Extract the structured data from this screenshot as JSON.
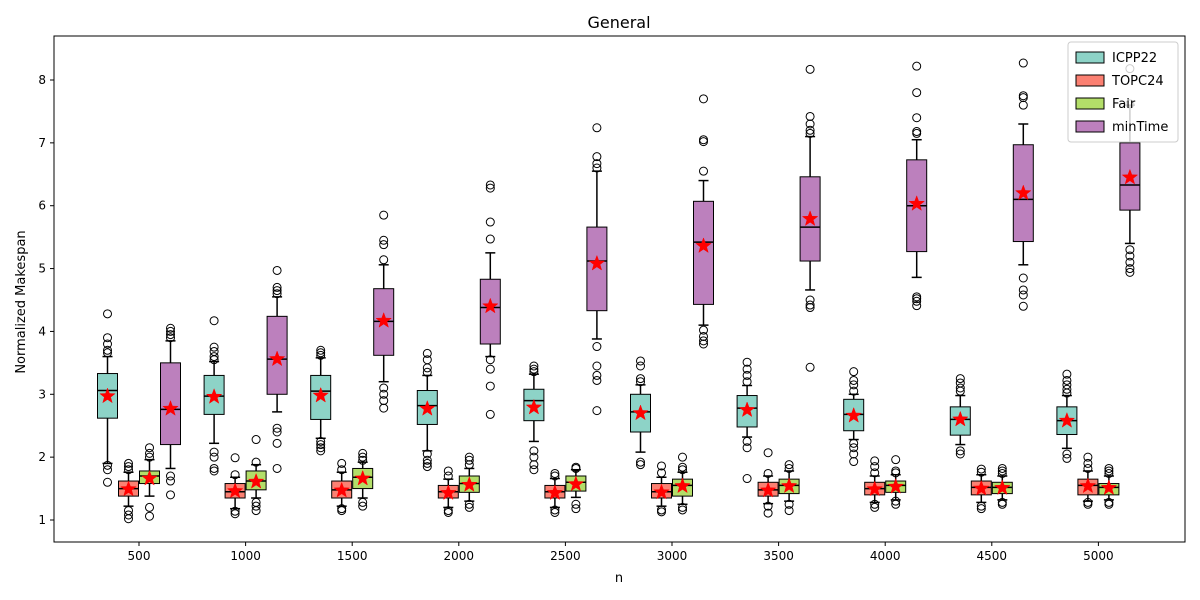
{
  "chart_data": {
    "type": "box",
    "title": "General",
    "xlabel": "n",
    "ylabel": "Normalized Makespan",
    "ylim": [
      0.65,
      8.7
    ],
    "yticks": [
      1,
      2,
      3,
      4,
      5,
      6,
      7,
      8
    ],
    "categories": [
      "500",
      "1000",
      "1500",
      "2000",
      "2500",
      "3000",
      "3500",
      "4000",
      "4500",
      "5000"
    ],
    "legend_position": "top-right",
    "mean_marker": "red-star",
    "series": [
      {
        "name": "ICPP22",
        "color": "#8dd3c7",
        "stats": [
          {
            "q1": 2.62,
            "median": 3.06,
            "q3": 3.33,
            "wlow": 1.9,
            "whigh": 3.6,
            "mean": 2.97,
            "outliers": [
              1.6,
              1.8,
              1.87,
              3.66,
              3.7,
              3.8,
              3.9,
              4.28
            ]
          },
          {
            "q1": 2.68,
            "median": 2.97,
            "q3": 3.3,
            "wlow": 2.22,
            "whigh": 3.52,
            "mean": 2.96,
            "outliers": [
              1.78,
              1.82,
              2.0,
              2.08,
              3.55,
              3.6,
              3.68,
              3.75,
              4.17
            ]
          },
          {
            "q1": 2.6,
            "median": 3.05,
            "q3": 3.3,
            "wlow": 2.3,
            "whigh": 3.58,
            "mean": 2.98,
            "outliers": [
              2.1,
              2.15,
              2.2,
              2.25,
              3.62,
              3.66,
              3.7
            ]
          },
          {
            "q1": 2.52,
            "median": 2.82,
            "q3": 3.06,
            "wlow": 2.1,
            "whigh": 3.3,
            "mean": 2.77,
            "outliers": [
              1.85,
              1.9,
              1.95,
              2.05,
              3.35,
              3.42,
              3.55,
              3.65
            ]
          },
          {
            "q1": 2.58,
            "median": 2.9,
            "q3": 3.08,
            "wlow": 2.25,
            "whigh": 3.32,
            "mean": 2.79,
            "outliers": [
              1.8,
              1.88,
              2.0,
              2.1,
              3.36,
              3.4,
              3.45
            ]
          },
          {
            "q1": 2.4,
            "median": 2.72,
            "q3": 3.0,
            "wlow": 2.08,
            "whigh": 3.15,
            "mean": 2.7,
            "outliers": [
              1.88,
              1.92,
              3.2,
              3.25,
              3.45,
              3.53
            ]
          },
          {
            "q1": 2.48,
            "median": 2.78,
            "q3": 2.98,
            "wlow": 2.32,
            "whigh": 3.14,
            "mean": 2.75,
            "outliers": [
              1.66,
              2.15,
              2.25,
              3.2,
              3.3,
              3.4,
              3.51
            ]
          },
          {
            "q1": 2.42,
            "median": 2.68,
            "q3": 2.92,
            "wlow": 2.28,
            "whigh": 3.0,
            "mean": 2.66,
            "outliers": [
              1.93,
              2.05,
              2.15,
              2.22,
              3.05,
              3.15,
              3.22,
              3.36
            ]
          },
          {
            "q1": 2.35,
            "median": 2.6,
            "q3": 2.8,
            "wlow": 2.2,
            "whigh": 2.98,
            "mean": 2.6,
            "outliers": [
              2.05,
              2.1,
              3.05,
              3.1,
              3.18,
              3.25
            ]
          },
          {
            "q1": 2.36,
            "median": 2.58,
            "q3": 2.8,
            "wlow": 2.14,
            "whigh": 2.98,
            "mean": 2.58,
            "outliers": [
              1.98,
              2.05,
              3.02,
              3.08,
              3.15,
              3.22,
              3.32
            ]
          }
        ]
      },
      {
        "name": "TOPC24",
        "color": "#fb8072",
        "stats": [
          {
            "q1": 1.38,
            "median": 1.5,
            "q3": 1.62,
            "wlow": 1.22,
            "whigh": 1.76,
            "mean": 1.49,
            "outliers": [
              1.02,
              1.08,
              1.15,
              1.8,
              1.85,
              1.9
            ]
          },
          {
            "q1": 1.35,
            "median": 1.45,
            "q3": 1.58,
            "wlow": 1.18,
            "whigh": 1.68,
            "mean": 1.46,
            "outliers": [
              1.1,
              1.14,
              1.72,
              1.99
            ]
          },
          {
            "q1": 1.35,
            "median": 1.48,
            "q3": 1.62,
            "wlow": 1.22,
            "whigh": 1.76,
            "mean": 1.47,
            "outliers": [
              1.15,
              1.18,
              1.8,
              1.9
            ]
          },
          {
            "q1": 1.35,
            "median": 1.45,
            "q3": 1.55,
            "wlow": 1.2,
            "whigh": 1.65,
            "mean": 1.43,
            "outliers": [
              1.12,
              1.15,
              1.7,
              1.78
            ]
          },
          {
            "q1": 1.35,
            "median": 1.45,
            "q3": 1.55,
            "wlow": 1.2,
            "whigh": 1.66,
            "mean": 1.43,
            "outliers": [
              1.12,
              1.16,
              1.7,
              1.74
            ]
          },
          {
            "q1": 1.35,
            "median": 1.45,
            "q3": 1.58,
            "wlow": 1.22,
            "whigh": 1.68,
            "mean": 1.44,
            "outliers": [
              1.13,
              1.16,
              1.75,
              1.86
            ]
          },
          {
            "q1": 1.38,
            "median": 1.48,
            "q3": 1.6,
            "wlow": 1.26,
            "whigh": 1.7,
            "mean": 1.47,
            "outliers": [
              1.11,
              1.22,
              1.74,
              2.07
            ]
          },
          {
            "q1": 1.4,
            "median": 1.5,
            "q3": 1.6,
            "wlow": 1.28,
            "whigh": 1.7,
            "mean": 1.49,
            "outliers": [
              1.2,
              1.25,
              1.75,
              1.85,
              1.94
            ]
          },
          {
            "q1": 1.4,
            "median": 1.52,
            "q3": 1.62,
            "wlow": 1.28,
            "whigh": 1.72,
            "mean": 1.5,
            "outliers": [
              1.18,
              1.22,
              1.76,
              1.81
            ]
          },
          {
            "q1": 1.4,
            "median": 1.55,
            "q3": 1.65,
            "wlow": 1.3,
            "whigh": 1.78,
            "mean": 1.54,
            "outliers": [
              1.25,
              1.28,
              1.82,
              1.9,
              2.0
            ]
          }
        ]
      },
      {
        "name": "Fair",
        "color": "#b3de69",
        "stats": [
          {
            "q1": 1.58,
            "median": 1.7,
            "q3": 1.78,
            "wlow": 1.38,
            "whigh": 1.96,
            "mean": 1.66,
            "outliers": [
              1.06,
              1.2,
              2.0,
              2.06,
              2.15
            ]
          },
          {
            "q1": 1.48,
            "median": 1.62,
            "q3": 1.78,
            "wlow": 1.35,
            "whigh": 1.88,
            "mean": 1.61,
            "outliers": [
              1.15,
              1.22,
              1.28,
              1.92,
              2.28
            ]
          },
          {
            "q1": 1.5,
            "median": 1.68,
            "q3": 1.82,
            "wlow": 1.35,
            "whigh": 1.92,
            "mean": 1.66,
            "outliers": [
              1.22,
              1.28,
              1.95,
              2.0,
              2.06
            ]
          },
          {
            "q1": 1.44,
            "median": 1.58,
            "q3": 1.7,
            "wlow": 1.3,
            "whigh": 1.82,
            "mean": 1.56,
            "outliers": [
              1.2,
              1.25,
              1.88,
              1.95,
              2.0
            ]
          },
          {
            "q1": 1.46,
            "median": 1.6,
            "q3": 1.7,
            "wlow": 1.36,
            "whigh": 1.8,
            "mean": 1.57,
            "outliers": [
              1.18,
              1.25,
              1.82,
              1.84
            ]
          },
          {
            "q1": 1.38,
            "median": 1.55,
            "q3": 1.65,
            "wlow": 1.25,
            "whigh": 1.76,
            "mean": 1.54,
            "outliers": [
              1.16,
              1.2,
              1.8,
              1.84,
              2.0
            ]
          },
          {
            "q1": 1.42,
            "median": 1.55,
            "q3": 1.65,
            "wlow": 1.3,
            "whigh": 1.78,
            "mean": 1.54,
            "outliers": [
              1.15,
              1.25,
              1.82,
              1.88
            ]
          },
          {
            "q1": 1.44,
            "median": 1.55,
            "q3": 1.62,
            "wlow": 1.32,
            "whigh": 1.72,
            "mean": 1.53,
            "outliers": [
              1.25,
              1.3,
              1.75,
              1.78,
              1.96
            ]
          },
          {
            "q1": 1.42,
            "median": 1.52,
            "q3": 1.6,
            "wlow": 1.32,
            "whigh": 1.7,
            "mean": 1.51,
            "outliers": [
              1.25,
              1.28,
              1.74,
              1.78,
              1.82
            ]
          },
          {
            "q1": 1.4,
            "median": 1.52,
            "q3": 1.58,
            "wlow": 1.32,
            "whigh": 1.7,
            "mean": 1.51,
            "outliers": [
              1.25,
              1.28,
              1.74,
              1.78,
              1.82
            ]
          }
        ]
      },
      {
        "name": "minTime",
        "color": "#bc80bd",
        "stats": [
          {
            "q1": 2.2,
            "median": 2.76,
            "q3": 3.5,
            "wlow": 1.82,
            "whigh": 3.85,
            "mean": 2.77,
            "outliers": [
              1.4,
              1.62,
              1.7,
              3.9,
              3.95,
              4.0,
              4.05
            ]
          },
          {
            "q1": 3.0,
            "median": 3.56,
            "q3": 4.24,
            "wlow": 2.72,
            "whigh": 4.55,
            "mean": 3.56,
            "outliers": [
              1.82,
              2.22,
              2.4,
              2.46,
              4.6,
              4.65,
              4.7,
              4.97
            ]
          },
          {
            "q1": 3.62,
            "median": 4.16,
            "q3": 4.68,
            "wlow": 3.2,
            "whigh": 5.06,
            "mean": 4.17,
            "outliers": [
              2.78,
              2.9,
              3.0,
              3.1,
              5.14,
              5.38,
              5.45,
              5.85
            ]
          },
          {
            "q1": 3.8,
            "median": 4.38,
            "q3": 4.83,
            "wlow": 3.6,
            "whigh": 5.25,
            "mean": 4.4,
            "outliers": [
              2.68,
              3.13,
              3.4,
              3.55,
              5.47,
              5.74,
              6.28,
              6.33
            ]
          },
          {
            "q1": 4.33,
            "median": 5.12,
            "q3": 5.66,
            "wlow": 3.88,
            "whigh": 6.55,
            "mean": 5.08,
            "outliers": [
              2.74,
              3.22,
              3.3,
              3.45,
              3.76,
              6.6,
              6.67,
              6.78,
              7.24
            ]
          },
          {
            "q1": 4.43,
            "median": 5.42,
            "q3": 6.07,
            "wlow": 4.1,
            "whigh": 6.4,
            "mean": 5.36,
            "outliers": [
              3.8,
              3.85,
              3.92,
              4.02,
              6.55,
              7.02,
              7.05,
              7.7
            ]
          },
          {
            "q1": 5.12,
            "median": 5.66,
            "q3": 6.46,
            "wlow": 4.66,
            "whigh": 7.1,
            "mean": 5.79,
            "outliers": [
              3.43,
              4.38,
              4.42,
              4.5,
              7.15,
              7.2,
              7.3,
              7.42,
              8.17
            ]
          },
          {
            "q1": 5.27,
            "median": 6.0,
            "q3": 6.73,
            "wlow": 4.86,
            "whigh": 7.05,
            "mean": 6.03,
            "outliers": [
              4.41,
              4.48,
              4.52,
              4.55,
              7.15,
              7.18,
              7.4,
              7.8,
              8.22
            ]
          },
          {
            "q1": 5.43,
            "median": 6.1,
            "q3": 6.97,
            "wlow": 5.06,
            "whigh": 7.3,
            "mean": 6.2,
            "outliers": [
              4.4,
              4.58,
              4.66,
              4.85,
              7.6,
              7.72,
              7.75,
              8.27
            ]
          },
          {
            "q1": 5.93,
            "median": 6.33,
            "q3": 7.0,
            "wlow": 5.4,
            "whigh": 7.6,
            "mean": 6.45,
            "outliers": [
              4.94,
              5.0,
              5.1,
              5.2,
              5.3,
              7.62,
              8.18
            ]
          }
        ]
      }
    ]
  }
}
